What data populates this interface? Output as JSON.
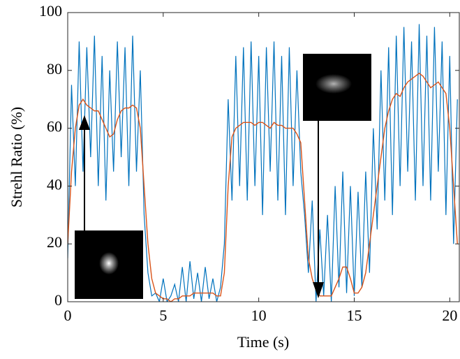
{
  "chart_data": {
    "type": "line",
    "x_label": "Time (s)",
    "y_label": "Strehl Ratio (%)",
    "x": [
      0,
      0.2,
      0.4,
      0.6,
      0.8,
      1.0,
      1.2,
      1.4,
      1.6,
      1.8,
      2.0,
      2.2,
      2.4,
      2.6,
      2.8,
      3.0,
      3.2,
      3.4,
      3.6,
      3.8,
      4.0,
      4.2,
      4.4,
      4.6,
      4.8,
      5.0,
      5.2,
      5.4,
      5.6,
      5.8,
      6.0,
      6.2,
      6.4,
      6.6,
      6.8,
      7.0,
      7.2,
      7.4,
      7.6,
      7.8,
      8.0,
      8.2,
      8.4,
      8.6,
      8.8,
      9.0,
      9.2,
      9.4,
      9.6,
      9.8,
      10.0,
      10.2,
      10.4,
      10.6,
      10.8,
      11.0,
      11.2,
      11.4,
      11.6,
      11.8,
      12.0,
      12.2,
      12.4,
      12.6,
      12.8,
      13.0,
      13.2,
      13.4,
      13.6,
      13.8,
      14.0,
      14.2,
      14.4,
      14.6,
      14.8,
      15.0,
      15.2,
      15.4,
      15.6,
      15.8,
      16.0,
      16.2,
      16.4,
      16.6,
      16.8,
      17.0,
      17.2,
      17.4,
      17.6,
      17.8,
      18.0,
      18.2,
      18.4,
      18.6,
      18.8,
      19.0,
      19.2,
      19.4,
      19.6,
      19.8,
      20.0,
      20.2,
      20.4
    ],
    "series": [
      {
        "color": "#0072bd",
        "values": [
          15,
          75,
          40,
          90,
          45,
          88,
          50,
          92,
          40,
          85,
          35,
          80,
          45,
          90,
          50,
          88,
          40,
          92,
          45,
          80,
          30,
          10,
          2,
          3,
          0,
          8,
          0,
          2,
          6,
          0,
          12,
          0,
          14,
          1,
          10,
          0,
          12,
          1,
          8,
          0,
          5,
          20,
          70,
          35,
          85,
          40,
          88,
          35,
          90,
          40,
          85,
          30,
          88,
          45,
          90,
          35,
          85,
          30,
          88,
          40,
          80,
          45,
          30,
          10,
          35,
          0,
          25,
          2,
          30,
          0,
          40,
          5,
          45,
          3,
          40,
          2,
          38,
          5,
          45,
          10,
          60,
          25,
          80,
          35,
          88,
          30,
          92,
          40,
          95,
          45,
          90,
          35,
          96,
          40,
          92,
          35,
          95,
          45,
          90,
          30,
          85,
          20,
          70
        ]
      },
      {
        "color": "#d95319",
        "values": [
          20,
          45,
          60,
          68,
          70,
          68,
          67,
          66,
          66,
          63,
          60,
          57,
          58,
          63,
          66,
          67,
          67,
          68,
          67,
          60,
          40,
          20,
          8,
          3,
          2,
          1,
          1,
          0,
          1,
          1,
          2,
          2,
          2,
          3,
          3,
          3,
          3,
          3,
          3,
          2,
          2,
          10,
          40,
          57,
          60,
          61,
          62,
          62,
          62,
          61,
          62,
          62,
          61,
          60,
          62,
          61,
          61,
          60,
          60,
          60,
          58,
          55,
          35,
          15,
          8,
          4,
          2,
          2,
          2,
          2,
          5,
          8,
          12,
          12,
          8,
          3,
          3,
          5,
          10,
          20,
          30,
          40,
          50,
          60,
          66,
          70,
          72,
          71,
          74,
          76,
          77,
          78,
          79,
          78,
          76,
          74,
          75,
          76,
          74,
          72,
          60,
          40,
          20
        ]
      }
    ],
    "xlim": [
      0,
      20.5
    ],
    "ylim": [
      0,
      100
    ],
    "xticks": [
      0,
      5,
      10,
      15,
      20
    ],
    "yticks": [
      0,
      20,
      40,
      60,
      80,
      100
    ]
  }
}
